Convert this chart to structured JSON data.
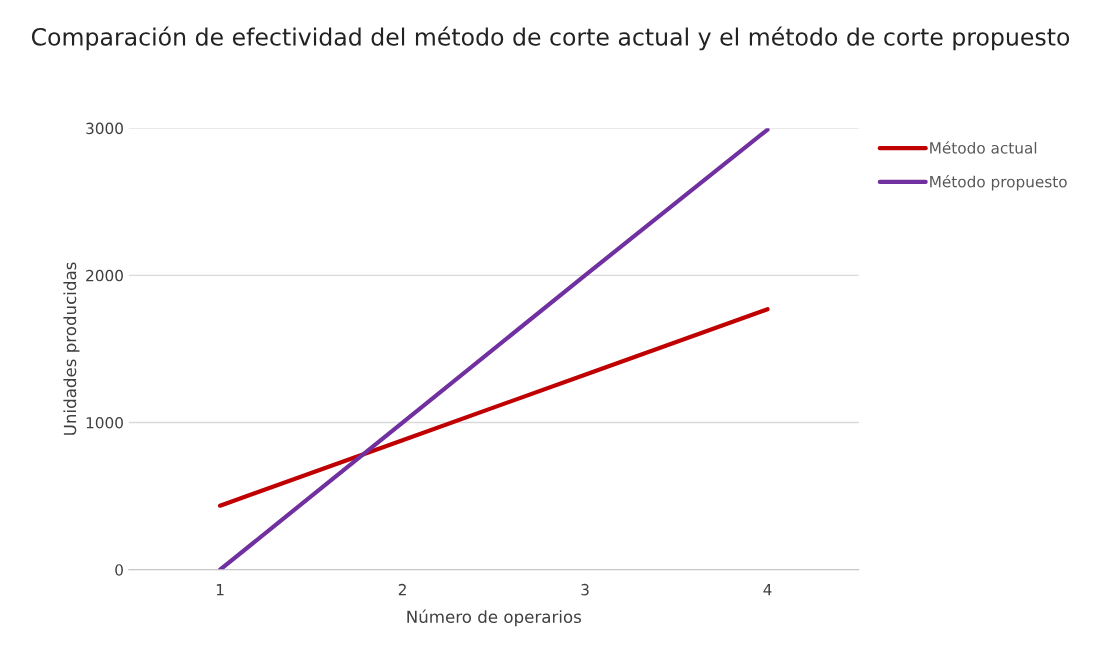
{
  "chart_data": {
    "type": "line",
    "title": "Comparación de efectividad del método de corte actual y el método de corte propuesto",
    "xlabel": "Número de operarios",
    "ylabel": "Unidades producidas",
    "categories": [
      "1",
      "2",
      "3",
      "4"
    ],
    "series": [
      {
        "name": "Método actual",
        "color": "#c00000",
        "values": [
          435,
          880,
          1325,
          1770
        ]
      },
      {
        "name": "Método propuesto",
        "color": "#7030a0",
        "values": [
          0,
          1000,
          2000,
          2990
        ]
      }
    ],
    "ylim": [
      0,
      3000
    ],
    "yticks": [
      0,
      1000,
      2000,
      3000
    ],
    "grid": "y",
    "legend": "right",
    "marker": "none",
    "line_style": "solid"
  }
}
